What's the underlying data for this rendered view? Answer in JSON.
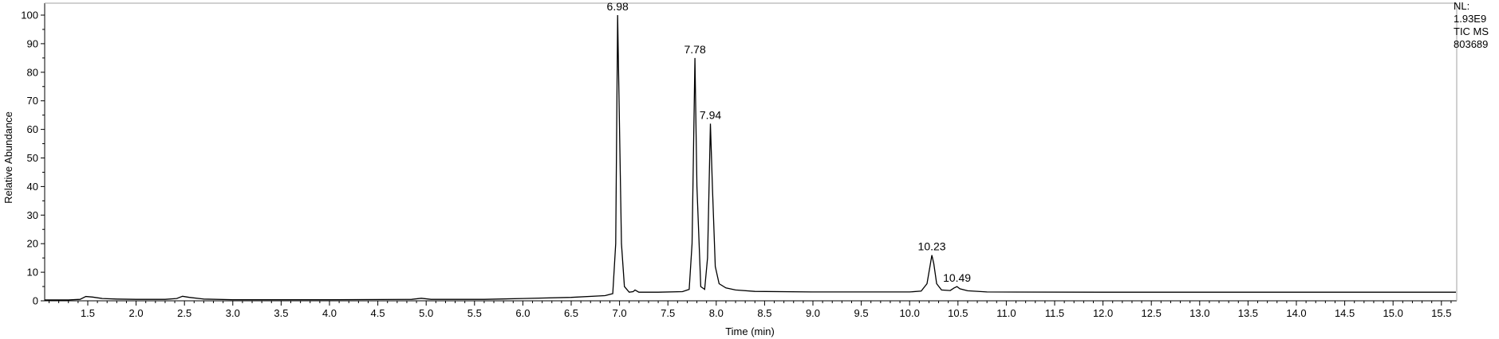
{
  "info": {
    "lines": [
      "NL:",
      "1.93E9",
      "TIC  MS",
      "803689"
    ]
  },
  "chart_data": {
    "type": "line",
    "title": "",
    "xlabel": "Time (min)",
    "ylabel": "Relative Abundance",
    "xlim": [
      1.0,
      15.65
    ],
    "ylim": [
      0,
      100
    ],
    "x_tick_labels": [
      "1.5",
      "2.0",
      "2.5",
      "3.0",
      "3.5",
      "4.0",
      "4.5",
      "5.0",
      "5.5",
      "6.0",
      "6.5",
      "7.0",
      "7.5",
      "8.0",
      "8.5",
      "9.0",
      "9.5",
      "10.0",
      "10.5",
      "11.0",
      "11.5",
      "12.0",
      "12.5",
      "13.0",
      "13.5",
      "14.0",
      "14.5",
      "15.0",
      "15.5"
    ],
    "y_tick_labels": [
      "0",
      "10",
      "20",
      "30",
      "40",
      "50",
      "60",
      "70",
      "80",
      "90",
      "100"
    ],
    "peak_labels": [
      {
        "x": 6.98,
        "y": 100,
        "text": "6.98"
      },
      {
        "x": 7.78,
        "y": 85,
        "text": "7.78"
      },
      {
        "x": 7.94,
        "y": 62,
        "text": "7.94"
      },
      {
        "x": 10.23,
        "y": 16,
        "text": "10.23"
      },
      {
        "x": 10.49,
        "y": 5,
        "text": "10.49"
      }
    ],
    "series": [
      {
        "values": [
          [
            1.0,
            0.3
          ],
          [
            1.3,
            0.3
          ],
          [
            1.42,
            0.5
          ],
          [
            1.48,
            1.5
          ],
          [
            1.55,
            1.3
          ],
          [
            1.65,
            0.8
          ],
          [
            1.8,
            0.6
          ],
          [
            2.0,
            0.5
          ],
          [
            2.3,
            0.5
          ],
          [
            2.42,
            0.8
          ],
          [
            2.48,
            1.6
          ],
          [
            2.55,
            1.2
          ],
          [
            2.7,
            0.6
          ],
          [
            3.0,
            0.4
          ],
          [
            4.0,
            0.4
          ],
          [
            4.85,
            0.5
          ],
          [
            4.95,
            0.9
          ],
          [
            5.05,
            0.5
          ],
          [
            5.6,
            0.5
          ],
          [
            6.0,
            0.8
          ],
          [
            6.5,
            1.2
          ],
          [
            6.85,
            1.8
          ],
          [
            6.93,
            2.5
          ],
          [
            6.96,
            20
          ],
          [
            6.98,
            100
          ],
          [
            7.0,
            60
          ],
          [
            7.02,
            20
          ],
          [
            7.05,
            5
          ],
          [
            7.1,
            3
          ],
          [
            7.14,
            3.2
          ],
          [
            7.16,
            3.8
          ],
          [
            7.2,
            3.0
          ],
          [
            7.4,
            3.0
          ],
          [
            7.65,
            3.2
          ],
          [
            7.72,
            4.0
          ],
          [
            7.75,
            20
          ],
          [
            7.78,
            85
          ],
          [
            7.8,
            40
          ],
          [
            7.84,
            5
          ],
          [
            7.88,
            4
          ],
          [
            7.91,
            15
          ],
          [
            7.94,
            62
          ],
          [
            7.96,
            40
          ],
          [
            7.99,
            12
          ],
          [
            8.03,
            6
          ],
          [
            8.1,
            4.5
          ],
          [
            8.2,
            3.8
          ],
          [
            8.4,
            3.3
          ],
          [
            9.0,
            3.1
          ],
          [
            10.0,
            3.1
          ],
          [
            10.12,
            3.4
          ],
          [
            10.18,
            6
          ],
          [
            10.21,
            12
          ],
          [
            10.23,
            16
          ],
          [
            10.25,
            13
          ],
          [
            10.28,
            6
          ],
          [
            10.33,
            3.8
          ],
          [
            10.42,
            3.6
          ],
          [
            10.46,
            4.5
          ],
          [
            10.49,
            5.0
          ],
          [
            10.52,
            4.2
          ],
          [
            10.6,
            3.5
          ],
          [
            10.8,
            3.1
          ],
          [
            12.0,
            3.0
          ],
          [
            15.65,
            3.0
          ]
        ]
      }
    ]
  }
}
